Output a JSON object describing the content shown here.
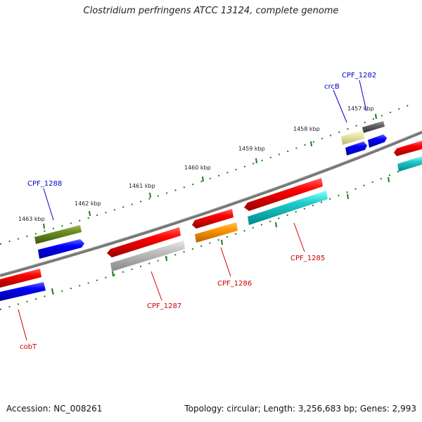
{
  "title": "Clostridium perfringens ATCC 13124, complete genome",
  "footer": {
    "accession": "Accession: NC_008261",
    "topology": "Topology: circular; Length: 3,256,683 bp; Genes: 2,993"
  },
  "ruler": {
    "labels": [
      "1457 kbp",
      "1458 kbp",
      "1459 kbp",
      "1460 kbp",
      "1461 kbp",
      "1462 kbp",
      "1463 kbp"
    ]
  },
  "genes": [
    {
      "name": "CPF_1282",
      "strand": "forward",
      "color": "#0000cc"
    },
    {
      "name": "crcB",
      "strand": "forward",
      "color": "#0000cc"
    },
    {
      "name": "CPF_1285",
      "strand": "reverse",
      "color": "#cc0000"
    },
    {
      "name": "CPF_1286",
      "strand": "reverse",
      "color": "#cc0000"
    },
    {
      "name": "CPF_1287",
      "strand": "reverse",
      "color": "#cc0000"
    },
    {
      "name": "CPF_1288",
      "strand": "forward",
      "color": "#0000cc"
    },
    {
      "name": "cobT",
      "strand": "reverse",
      "color": "#cc0000"
    }
  ]
}
